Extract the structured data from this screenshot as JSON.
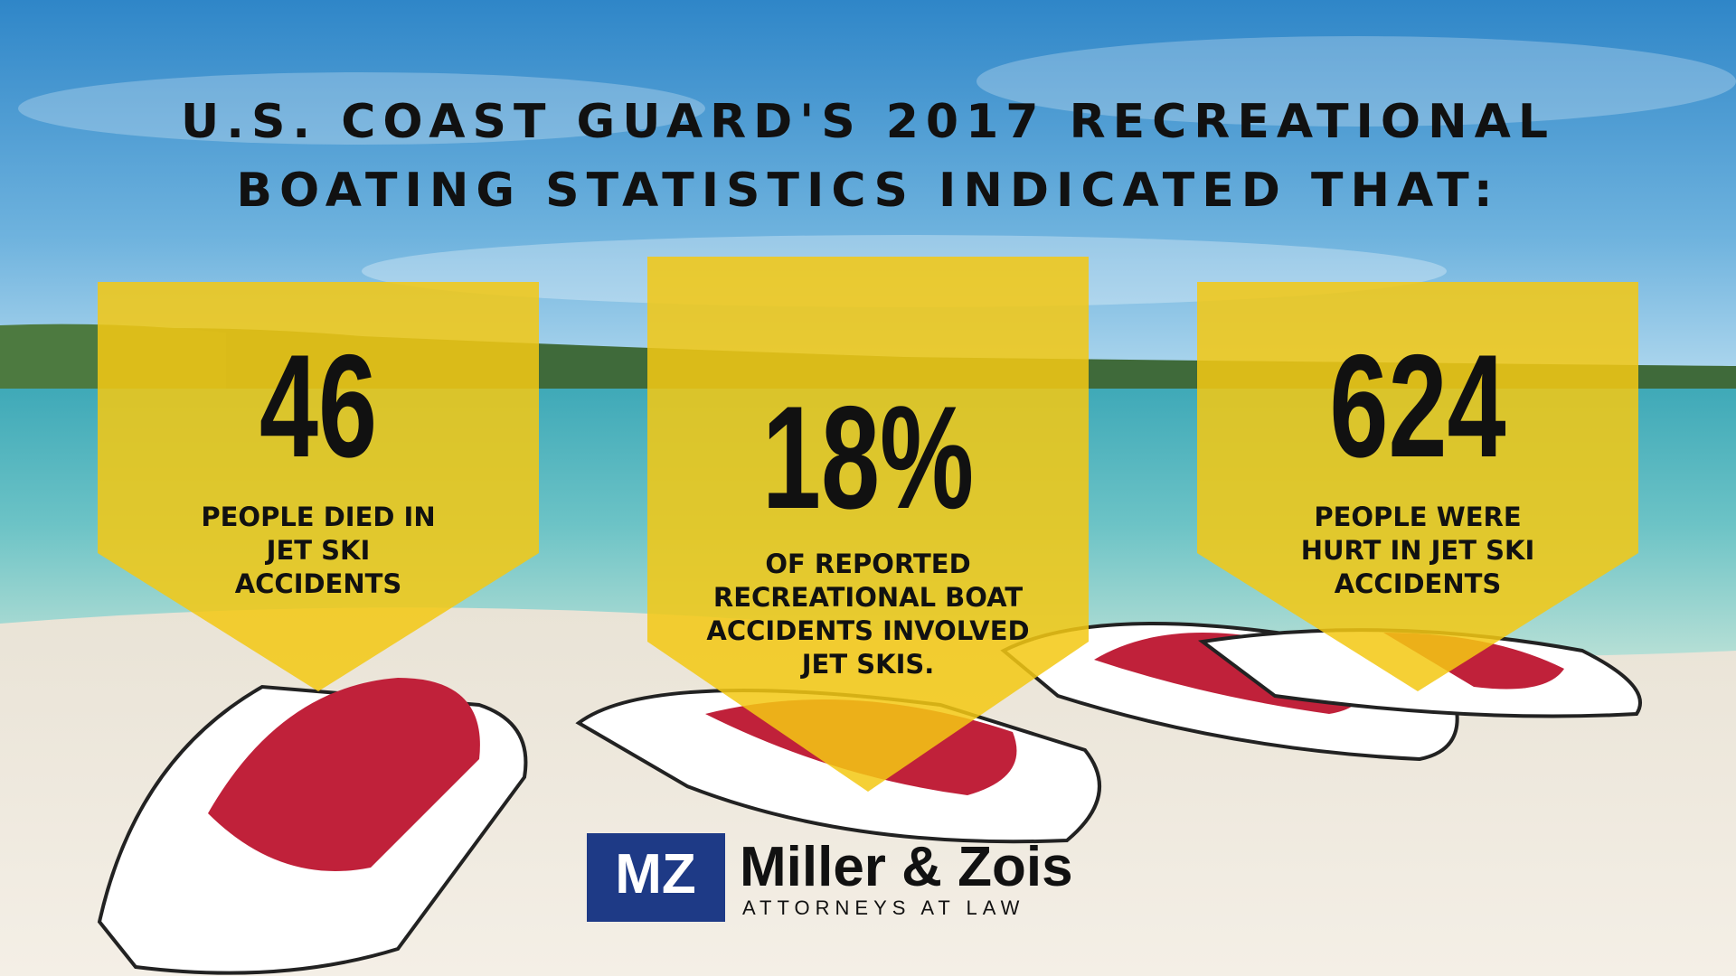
{
  "title": {
    "lines": [
      "U.S. COAST GUARD'S 2017 RECREATIONAL",
      "BOATING STATISTICS INDICATED THAT:"
    ]
  },
  "stats": [
    {
      "value": "46",
      "description": [
        "PEOPLE DIED IN",
        "JET SKI",
        "ACCIDENTS"
      ]
    },
    {
      "value": "18%",
      "description": [
        "OF REPORTED",
        "RECREATIONAL BOAT",
        "ACCIDENTS INVOLVED",
        "JET SKIS."
      ]
    },
    {
      "value": "624",
      "description": [
        "PEOPLE WERE",
        "HURT IN JET SKI",
        "ACCIDENTS"
      ]
    }
  ],
  "logo": {
    "mark": "MZ",
    "name": "Miller & Zois",
    "tagline": "ATTORNEYS AT LAW"
  }
}
